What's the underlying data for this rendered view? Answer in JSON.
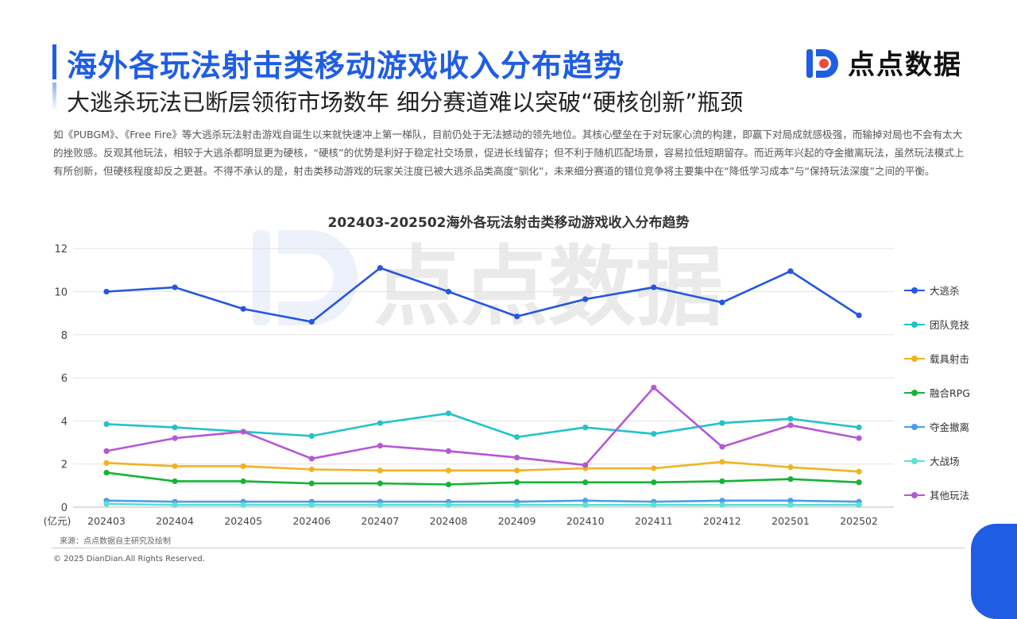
{
  "header": {
    "title": "海外各玩法射击类移动游戏收入分布趋势",
    "subtitle": "大逃杀玩法已断层领衔市场数年 细分赛道难以突破“硬核创新”瓶颈",
    "logo_text": "点点数据",
    "brand_color": "#1f5de5"
  },
  "paragraph": "如《PUBGM》、《Free Fire》等大逃杀玩法射击游戏自诞生以来就快速冲上第一梯队，目前仍处于无法撼动的领先地位。其核心壁垒在于对玩家心流的构建，即赢下对局成就感极强，而输掉对局也不会有太大的挫败感。反观其他玩法，相较于大逃杀都明显更为硬核，“硬核”的优势是利好于稳定社交场景，促进长线留存；但不利于随机匹配场景，容易拉低短期留存。而近两年兴起的夺金撤离玩法，虽然玩法模式上有所创新，但硬核程度却反之更甚。不得不承认的是，射击类移动游戏的玩家关注度已被大逃杀品类高度“驯化”，未来细分赛道的错位竞争将主要集中在“降低学习成本”与“保持玩法深度”之间的平衡。",
  "chart_data": {
    "type": "line",
    "title": "202403-202502海外各玩法射击类移动游戏收入分布趋势",
    "ylabel": "(亿元)",
    "ylim": [
      0,
      12
    ],
    "yticks": [
      0,
      2,
      4,
      6,
      8,
      10,
      12
    ],
    "grid": true,
    "legend_position": "right",
    "categories": [
      "202403",
      "202404",
      "202405",
      "202406",
      "202407",
      "202408",
      "202409",
      "202410",
      "202411",
      "202412",
      "202501",
      "202502"
    ],
    "series": [
      {
        "name": "大逃杀",
        "color": "#2456e0",
        "values": [
          10.0,
          10.2,
          9.2,
          8.6,
          11.1,
          10.0,
          8.85,
          9.65,
          10.2,
          9.5,
          10.95,
          8.9
        ]
      },
      {
        "name": "团队竞技",
        "color": "#1fc4c8",
        "values": [
          3.85,
          3.7,
          3.5,
          3.3,
          3.9,
          4.35,
          3.25,
          3.7,
          3.4,
          3.9,
          4.1,
          3.7
        ]
      },
      {
        "name": "载具射击",
        "color": "#f2b320",
        "values": [
          2.05,
          1.9,
          1.9,
          1.75,
          1.7,
          1.7,
          1.7,
          1.8,
          1.8,
          2.1,
          1.85,
          1.65
        ]
      },
      {
        "name": "融合RPG",
        "color": "#15b336",
        "values": [
          1.6,
          1.2,
          1.2,
          1.1,
          1.1,
          1.05,
          1.15,
          1.15,
          1.15,
          1.2,
          1.3,
          1.15
        ]
      },
      {
        "name": "夺金撤离",
        "color": "#4d9de8",
        "values": [
          0.3,
          0.25,
          0.25,
          0.25,
          0.25,
          0.25,
          0.25,
          0.3,
          0.25,
          0.3,
          0.3,
          0.25
        ]
      },
      {
        "name": "大战场",
        "color": "#5de0d6",
        "values": [
          0.15,
          0.1,
          0.1,
          0.1,
          0.1,
          0.1,
          0.1,
          0.1,
          0.1,
          0.1,
          0.1,
          0.1
        ]
      },
      {
        "name": "其他玩法",
        "color": "#b557d6",
        "values": [
          2.6,
          3.2,
          3.5,
          2.25,
          2.85,
          2.6,
          2.3,
          1.95,
          5.55,
          2.8,
          3.8,
          3.2
        ]
      }
    ]
  },
  "footer": {
    "source": "来源：点点数据自主研究及绘制",
    "copyright": "© 2025 DianDian.All Rights Reserved."
  }
}
